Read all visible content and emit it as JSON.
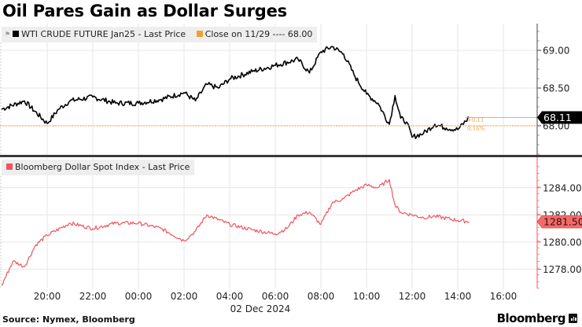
{
  "title": "Oil Pares Gain as Dollar Surges",
  "footer": {
    "source": "Source: Nymex, Bloomberg",
    "brand": "Bloomberg"
  },
  "colors": {
    "oil_line": "#000000",
    "close_line": "#f0a030",
    "dollar_line": "#f2545b",
    "dollar_tag": "#f26b6b",
    "grid": "#e6e6e6",
    "panel_divider": "#3a3a3a"
  },
  "top_panel": {
    "legend": {
      "series_label": "WTI CRUDE FUTURE Jan25 - Last Price",
      "close_label": "Close on 11/29 ---- 68.00"
    },
    "y_ticks": [
      "69.00",
      "68.50",
      "68.00"
    ],
    "last_value_tag": "68.11",
    "change_annotation": {
      "abs": "+0.11",
      "pct": "0.16%"
    }
  },
  "bottom_panel": {
    "legend": {
      "series_label": "Bloomberg Dollar Spot Index - Last Price"
    },
    "y_ticks": [
      "1284.00",
      "1282.00",
      "1280.00",
      "1278.00"
    ],
    "last_value_tag": "1281.50"
  },
  "x_axis": {
    "ticks": [
      "20:00",
      "22:00",
      "00:00",
      "02:00",
      "04:00",
      "06:00",
      "08:00",
      "10:00",
      "12:00",
      "14:00",
      "16:00"
    ],
    "date_label": "02 Dec 2024"
  },
  "chart_data": [
    {
      "type": "line",
      "title": "Oil Pares Gain as Dollar Surges",
      "series": [
        {
          "name": "WTI CRUDE FUTURE Jan25 - Last Price",
          "x": [
            "18:00",
            "19:00",
            "20:00",
            "20:30",
            "21:00",
            "22:00",
            "23:00",
            "00:00",
            "01:00",
            "02:00",
            "02:30",
            "03:00",
            "03:30",
            "04:00",
            "05:00",
            "06:00",
            "07:00",
            "07:30",
            "08:00",
            "08:30",
            "09:00",
            "09:30",
            "10:00",
            "10:30",
            "11:00",
            "11:15",
            "11:30",
            "11:45",
            "12:00",
            "12:30",
            "13:00",
            "13:30",
            "14:00",
            "14:30"
          ],
          "values": [
            68.22,
            68.33,
            68.03,
            68.22,
            68.33,
            68.38,
            68.3,
            68.3,
            68.35,
            68.44,
            68.33,
            68.55,
            68.5,
            68.62,
            68.72,
            68.8,
            68.88,
            68.7,
            68.98,
            69.05,
            68.95,
            68.65,
            68.42,
            68.3,
            68.02,
            68.4,
            68.1,
            68.05,
            67.85,
            67.9,
            68.02,
            67.97,
            67.95,
            68.11
          ]
        },
        {
          "name": "Close on 11/29",
          "values": [
            68.0
          ]
        }
      ],
      "y_ticks": [
        68.0,
        68.5,
        69.0
      ],
      "ylim": [
        67.75,
        69.35
      ],
      "last_value": 68.11,
      "change": "+0.11 (0.16%)"
    },
    {
      "type": "line",
      "series": [
        {
          "name": "Bloomberg Dollar Spot Index - Last Price",
          "x": [
            "18:00",
            "18:30",
            "19:00",
            "19:30",
            "20:00",
            "21:00",
            "22:00",
            "23:00",
            "00:00",
            "01:00",
            "02:00",
            "02:30",
            "03:00",
            "04:00",
            "05:00",
            "06:00",
            "06:30",
            "07:00",
            "07:30",
            "08:00",
            "08:30",
            "09:00",
            "09:30",
            "10:00",
            "10:30",
            "11:00",
            "11:15",
            "11:30",
            "12:00",
            "12:30",
            "13:00",
            "14:00",
            "14:30"
          ],
          "values": [
            1276.8,
            1278.6,
            1278.2,
            1279.8,
            1280.5,
            1281.4,
            1281.0,
            1281.4,
            1281.4,
            1281.0,
            1280.1,
            1280.8,
            1282.0,
            1281.3,
            1280.9,
            1280.6,
            1281.0,
            1282.0,
            1282.2,
            1281.3,
            1282.9,
            1283.2,
            1283.8,
            1284.2,
            1284.0,
            1284.6,
            1282.7,
            1282.2,
            1282.0,
            1281.8,
            1281.9,
            1281.6,
            1281.5
          ]
        }
      ],
      "y_ticks": [
        1278.0,
        1280.0,
        1282.0,
        1284.0
      ],
      "ylim": [
        1276.5,
        1286.5
      ],
      "last_value": 1281.5
    }
  ]
}
